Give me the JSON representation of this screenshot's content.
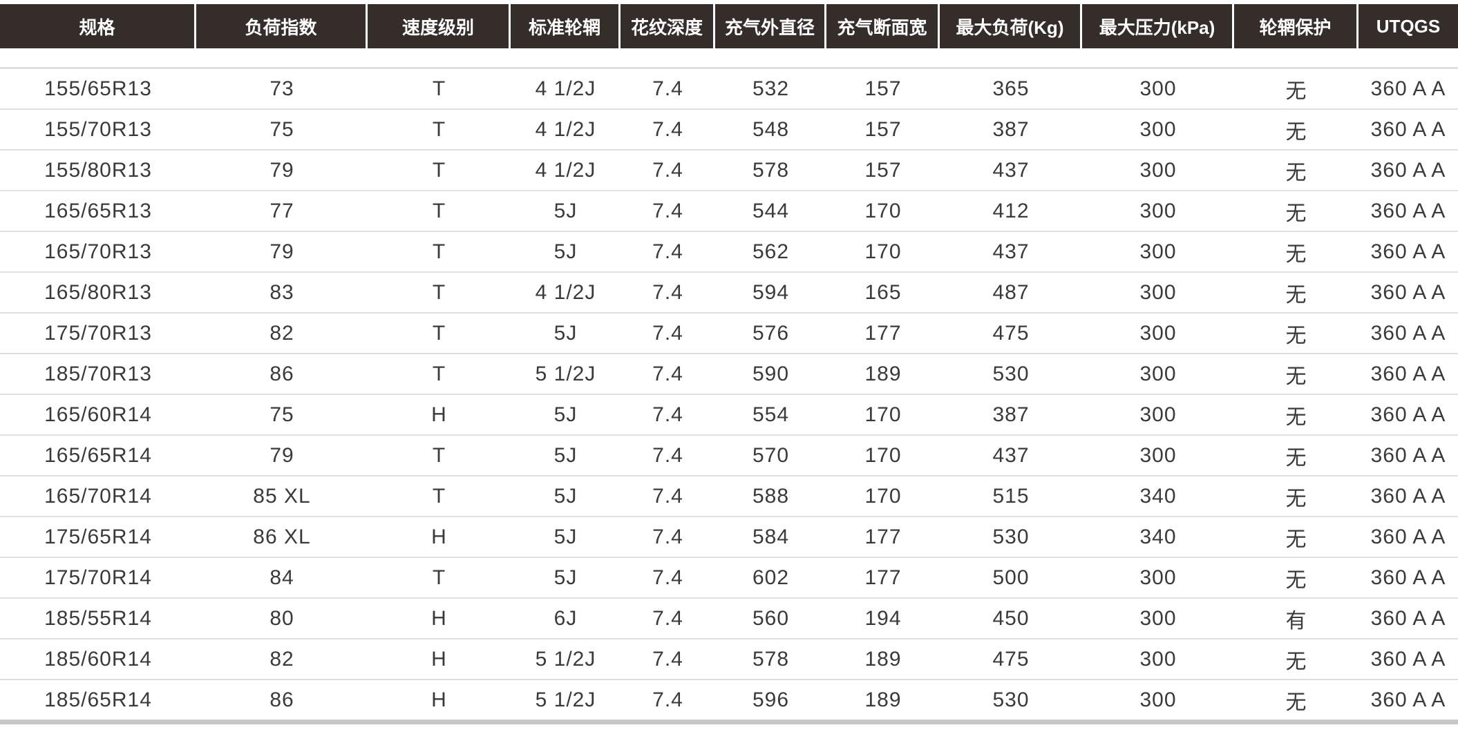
{
  "headers": [
    "规格",
    "负荷指数",
    "速度级别",
    "标准轮辋",
    "花纹深度",
    "充气外直径",
    "充气断面宽",
    "最大负荷(Kg)",
    "最大压力(kPa)",
    "轮辋保护",
    "UTQGS"
  ],
  "rows": [
    [
      "155/65R13",
      "73",
      "T",
      "4 1/2J",
      "7.4",
      "532",
      "157",
      "365",
      "300",
      "无",
      "360 A A"
    ],
    [
      "155/70R13",
      "75",
      "T",
      "4 1/2J",
      "7.4",
      "548",
      "157",
      "387",
      "300",
      "无",
      "360 A A"
    ],
    [
      "155/80R13",
      "79",
      "T",
      "4 1/2J",
      "7.4",
      "578",
      "157",
      "437",
      "300",
      "无",
      "360 A A"
    ],
    [
      "165/65R13",
      "77",
      "T",
      "5J",
      "7.4",
      "544",
      "170",
      "412",
      "300",
      "无",
      "360 A A"
    ],
    [
      "165/70R13",
      "79",
      "T",
      "5J",
      "7.4",
      "562",
      "170",
      "437",
      "300",
      "无",
      "360 A A"
    ],
    [
      "165/80R13",
      "83",
      "T",
      "4 1/2J",
      "7.4",
      "594",
      "165",
      "487",
      "300",
      "无",
      "360 A A"
    ],
    [
      "175/70R13",
      "82",
      "T",
      "5J",
      "7.4",
      "576",
      "177",
      "475",
      "300",
      "无",
      "360 A A"
    ],
    [
      "185/70R13",
      "86",
      "T",
      "5 1/2J",
      "7.4",
      "590",
      "189",
      "530",
      "300",
      "无",
      "360 A A"
    ],
    [
      "165/60R14",
      "75",
      "H",
      "5J",
      "7.4",
      "554",
      "170",
      "387",
      "300",
      "无",
      "360 A A"
    ],
    [
      "165/65R14",
      "79",
      "T",
      "5J",
      "7.4",
      "570",
      "170",
      "437",
      "300",
      "无",
      "360 A A"
    ],
    [
      "165/70R14",
      "85 XL",
      "T",
      "5J",
      "7.4",
      "588",
      "170",
      "515",
      "340",
      "无",
      "360 A A"
    ],
    [
      "175/65R14",
      "86 XL",
      "H",
      "5J",
      "7.4",
      "584",
      "177",
      "530",
      "340",
      "无",
      "360 A A"
    ],
    [
      "175/70R14",
      "84",
      "T",
      "5J",
      "7.4",
      "602",
      "177",
      "500",
      "300",
      "无",
      "360 A A"
    ],
    [
      "185/55R14",
      "80",
      "H",
      "6J",
      "7.4",
      "560",
      "194",
      "450",
      "300",
      "有",
      "360 A A"
    ],
    [
      "185/60R14",
      "82",
      "H",
      "5 1/2J",
      "7.4",
      "578",
      "189",
      "475",
      "300",
      "无",
      "360 A A"
    ],
    [
      "185/65R14",
      "86",
      "H",
      "5 1/2J",
      "7.4",
      "596",
      "189",
      "530",
      "300",
      "无",
      "360 A A"
    ]
  ],
  "colors": {
    "header_bg": "#352d2a",
    "header_text": "#ffffff",
    "row_divider": "#e0e0e0"
  }
}
